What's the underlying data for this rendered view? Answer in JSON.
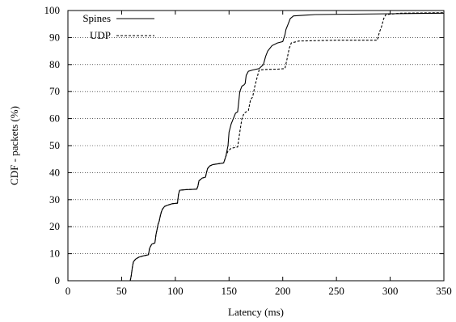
{
  "chart_data": {
    "type": "line",
    "xlabel": "Latency (ms)",
    "ylabel": "CDF - packets (%)",
    "xlim": [
      0,
      350
    ],
    "ylim": [
      0,
      100
    ],
    "xticks": [
      0,
      50,
      100,
      150,
      200,
      250,
      300,
      350
    ],
    "yticks": [
      0,
      10,
      20,
      30,
      40,
      50,
      60,
      70,
      80,
      90,
      100
    ],
    "grid": "horizontal dotted",
    "legend": "top-left",
    "series": [
      {
        "name": "Spines",
        "style": "solid",
        "color": "#000000",
        "points": [
          [
            58,
            0
          ],
          [
            59,
            2
          ],
          [
            60,
            5
          ],
          [
            61,
            7
          ],
          [
            63,
            8
          ],
          [
            66,
            8.7
          ],
          [
            70,
            9.2
          ],
          [
            75,
            9.6
          ],
          [
            76,
            12
          ],
          [
            78,
            13.5
          ],
          [
            81,
            14
          ],
          [
            82,
            17
          ],
          [
            83,
            19
          ],
          [
            84,
            21
          ],
          [
            85,
            22
          ],
          [
            86,
            24
          ],
          [
            87,
            25.5
          ],
          [
            88,
            26.5
          ],
          [
            90,
            27.5
          ],
          [
            93,
            28
          ],
          [
            97,
            28.5
          ],
          [
            102,
            28.7
          ],
          [
            103,
            32
          ],
          [
            104,
            33.5
          ],
          [
            110,
            33.7
          ],
          [
            120,
            33.9
          ],
          [
            121,
            35
          ],
          [
            122,
            37
          ],
          [
            125,
            38
          ],
          [
            128,
            38.3
          ],
          [
            129,
            40
          ],
          [
            130,
            41.5
          ],
          [
            132,
            42.5
          ],
          [
            135,
            43
          ],
          [
            140,
            43.3
          ],
          [
            145,
            43.6
          ],
          [
            147,
            46
          ],
          [
            149,
            50
          ],
          [
            150,
            55
          ],
          [
            152,
            58
          ],
          [
            154,
            60
          ],
          [
            156,
            62
          ],
          [
            158,
            62.5
          ],
          [
            159,
            66
          ],
          [
            160,
            70
          ],
          [
            162,
            72
          ],
          [
            164,
            72.5
          ],
          [
            165,
            73
          ],
          [
            166,
            76
          ],
          [
            168,
            77.5
          ],
          [
            172,
            78
          ],
          [
            178,
            78.5
          ],
          [
            182,
            80
          ],
          [
            184,
            83
          ],
          [
            186,
            85
          ],
          [
            190,
            87
          ],
          [
            195,
            88
          ],
          [
            200,
            88.5
          ],
          [
            202,
            91
          ],
          [
            203,
            93
          ],
          [
            205,
            95
          ],
          [
            207,
            97
          ],
          [
            210,
            98
          ],
          [
            230,
            98.5
          ],
          [
            300,
            98.8
          ],
          [
            350,
            99
          ]
        ]
      },
      {
        "name": "UDP",
        "style": "dashed",
        "color": "#000000",
        "points": [
          [
            58,
            0
          ],
          [
            59,
            2
          ],
          [
            60,
            5
          ],
          [
            61,
            7
          ],
          [
            63,
            8
          ],
          [
            66,
            8.7
          ],
          [
            70,
            9.2
          ],
          [
            75,
            9.6
          ],
          [
            76,
            12
          ],
          [
            78,
            13.5
          ],
          [
            81,
            14
          ],
          [
            82,
            17
          ],
          [
            83,
            19
          ],
          [
            84,
            21
          ],
          [
            85,
            22
          ],
          [
            86,
            24
          ],
          [
            87,
            25.5
          ],
          [
            88,
            26.5
          ],
          [
            90,
            27.5
          ],
          [
            93,
            28
          ],
          [
            97,
            28.5
          ],
          [
            102,
            28.7
          ],
          [
            103,
            32
          ],
          [
            104,
            33.5
          ],
          [
            110,
            33.7
          ],
          [
            120,
            33.9
          ],
          [
            121,
            35
          ],
          [
            122,
            37
          ],
          [
            125,
            38
          ],
          [
            128,
            38.3
          ],
          [
            129,
            40
          ],
          [
            130,
            41.5
          ],
          [
            132,
            42.5
          ],
          [
            135,
            43
          ],
          [
            140,
            43.3
          ],
          [
            145,
            43.6
          ],
          [
            147,
            46
          ],
          [
            149,
            48
          ],
          [
            152,
            49
          ],
          [
            158,
            49.5
          ],
          [
            160,
            55
          ],
          [
            162,
            60
          ],
          [
            164,
            62
          ],
          [
            168,
            63
          ],
          [
            170,
            67
          ],
          [
            172,
            68
          ],
          [
            174,
            72
          ],
          [
            176,
            75
          ],
          [
            178,
            78
          ],
          [
            185,
            78.2
          ],
          [
            195,
            78.3
          ],
          [
            202,
            78.5
          ],
          [
            204,
            82
          ],
          [
            206,
            86
          ],
          [
            208,
            88
          ],
          [
            215,
            88.7
          ],
          [
            250,
            89
          ],
          [
            288,
            89
          ],
          [
            290,
            92
          ],
          [
            292,
            94
          ],
          [
            294,
            97
          ],
          [
            296,
            98.5
          ],
          [
            310,
            99
          ],
          [
            350,
            99.2
          ]
        ]
      }
    ]
  }
}
